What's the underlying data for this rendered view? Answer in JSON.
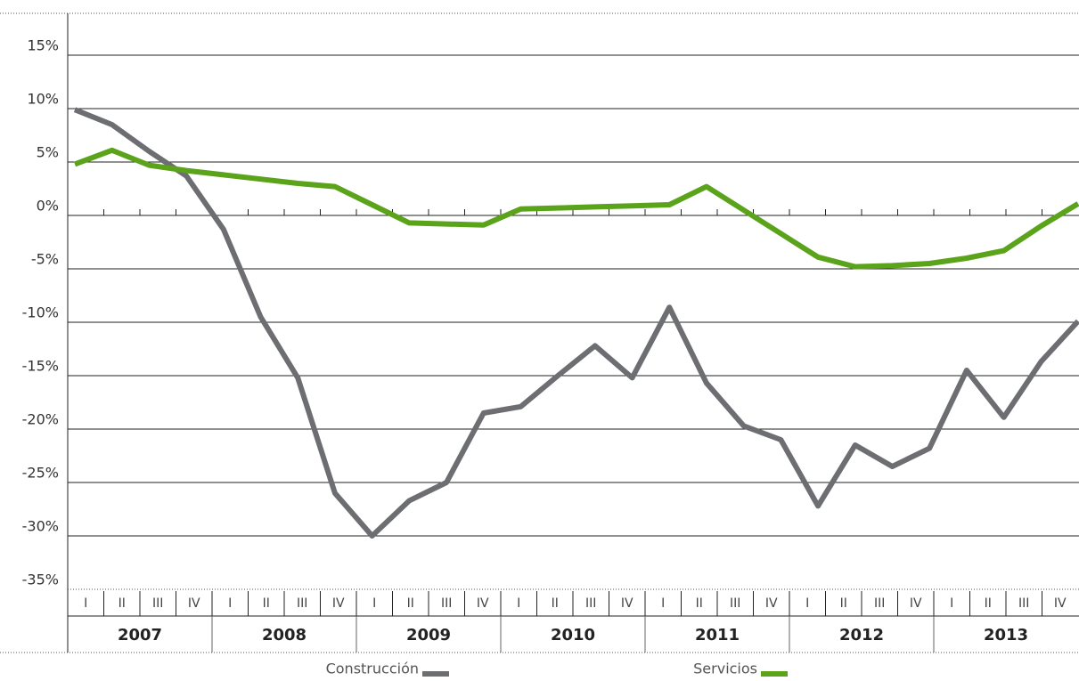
{
  "chart_data": {
    "type": "line",
    "categories": [
      "I",
      "II",
      "III",
      "IV",
      "I",
      "II",
      "III",
      "IV",
      "I",
      "II",
      "III",
      "IV",
      "I",
      "II",
      "III",
      "IV",
      "I",
      "II",
      "III",
      "IV",
      "I",
      "II",
      "III",
      "IV",
      "I",
      "II",
      "III",
      "IV"
    ],
    "years": [
      "2007",
      "2008",
      "2009",
      "2010",
      "2011",
      "2012",
      "2013"
    ],
    "series": [
      {
        "name": "Construcción",
        "color": "#6d6e71",
        "values": [
          9.9,
          8.5,
          6.0,
          3.7,
          -1.3,
          -9.5,
          -15.2,
          -26,
          -30,
          -26.7,
          -25,
          -18.5,
          -17.9,
          -15,
          -12.2,
          -15.2,
          -8.6,
          -15.7,
          -19.7,
          -21,
          -27.2,
          -21.5,
          -23.5,
          -21.8,
          -14.5,
          -18.9,
          -13.7,
          -9.9
        ]
      },
      {
        "name": "Servicios",
        "color": "#5aa31a",
        "values": [
          4.8,
          6.1,
          4.7,
          4.2,
          3.8,
          3.4,
          3.0,
          2.7,
          1.0,
          -0.7,
          -0.8,
          -0.9,
          0.6,
          0.7,
          0.8,
          0.9,
          1.0,
          2.7,
          0.5,
          -1.7,
          -3.9,
          -4.8,
          -4.7,
          -4.5,
          -4.0,
          -3.3,
          -1.0,
          1.1
        ]
      }
    ],
    "ylim": [
      -35,
      19
    ],
    "yticks": [
      {
        "value": -35,
        "label": "-35%"
      },
      {
        "value": -30,
        "label": "-30%"
      },
      {
        "value": -25,
        "label": "-25%"
      },
      {
        "value": -20,
        "label": "-20%"
      },
      {
        "value": -15,
        "label": "-15%"
      },
      {
        "value": -10,
        "label": "-10%"
      },
      {
        "value": -5,
        "label": "-5%"
      },
      {
        "value": 0,
        "label": "0%"
      },
      {
        "value": 5,
        "label": "5%"
      },
      {
        "value": 10,
        "label": "10%"
      },
      {
        "value": 15,
        "label": "15%"
      }
    ],
    "grid": true
  }
}
